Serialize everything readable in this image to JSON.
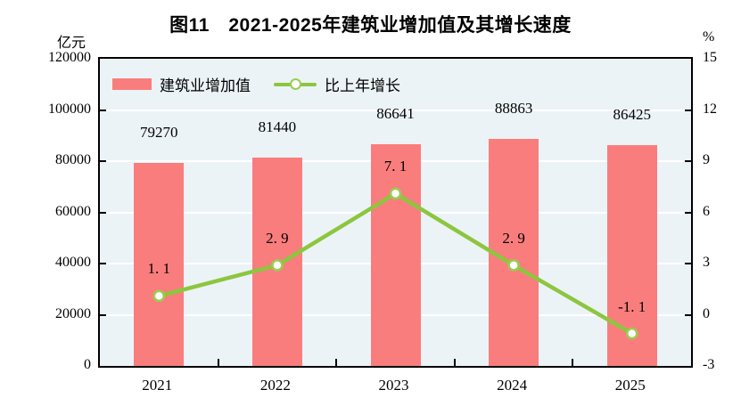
{
  "title": "图11　2021-2025年建筑业增加值及其增长速度",
  "left_unit": "亿元",
  "right_unit": "%",
  "colors": {
    "bar": "#FA7D7D",
    "line": "#8CC63F",
    "marker_ring": "#9ACD4F",
    "marker_fill": "#FFFFFF",
    "plot_bg": "#ECF3F7",
    "gridline": "#FFFFFF",
    "axis": "#000000",
    "text": "#000000"
  },
  "chart_data": {
    "type": "bar+line",
    "title": "图11　2021-2025年建筑业增加值及其增长速度",
    "categories": [
      "2021",
      "2022",
      "2023",
      "2024",
      "2025"
    ],
    "series": [
      {
        "name": "建筑业增加值",
        "type": "bar",
        "axis": "left",
        "values": [
          79270,
          81440,
          86641,
          88863,
          86425
        ],
        "labels": [
          "79270",
          "81440",
          "86641",
          "88863",
          "86425"
        ],
        "color": "#FA7D7D"
      },
      {
        "name": "比上年增长",
        "type": "line",
        "axis": "right",
        "values": [
          1.1,
          2.9,
          7.1,
          2.9,
          -1.1
        ],
        "labels": [
          "1. 1",
          "2. 9",
          "7. 1",
          "2. 9",
          "-1. 1"
        ],
        "color": "#8CC63F"
      }
    ],
    "left_axis": {
      "label": "亿元",
      "min": 0,
      "max": 120000,
      "step": 20000,
      "ticks": [
        "0",
        "20000",
        "40000",
        "60000",
        "80000",
        "100000",
        "120000"
      ]
    },
    "right_axis": {
      "label": "%",
      "min": -3,
      "max": 15,
      "step": 3,
      "ticks": [
        "-3",
        "0",
        "3",
        "6",
        "9",
        "12",
        "15"
      ]
    },
    "grid": "horizontal",
    "legend_position": "top-left-inside"
  }
}
